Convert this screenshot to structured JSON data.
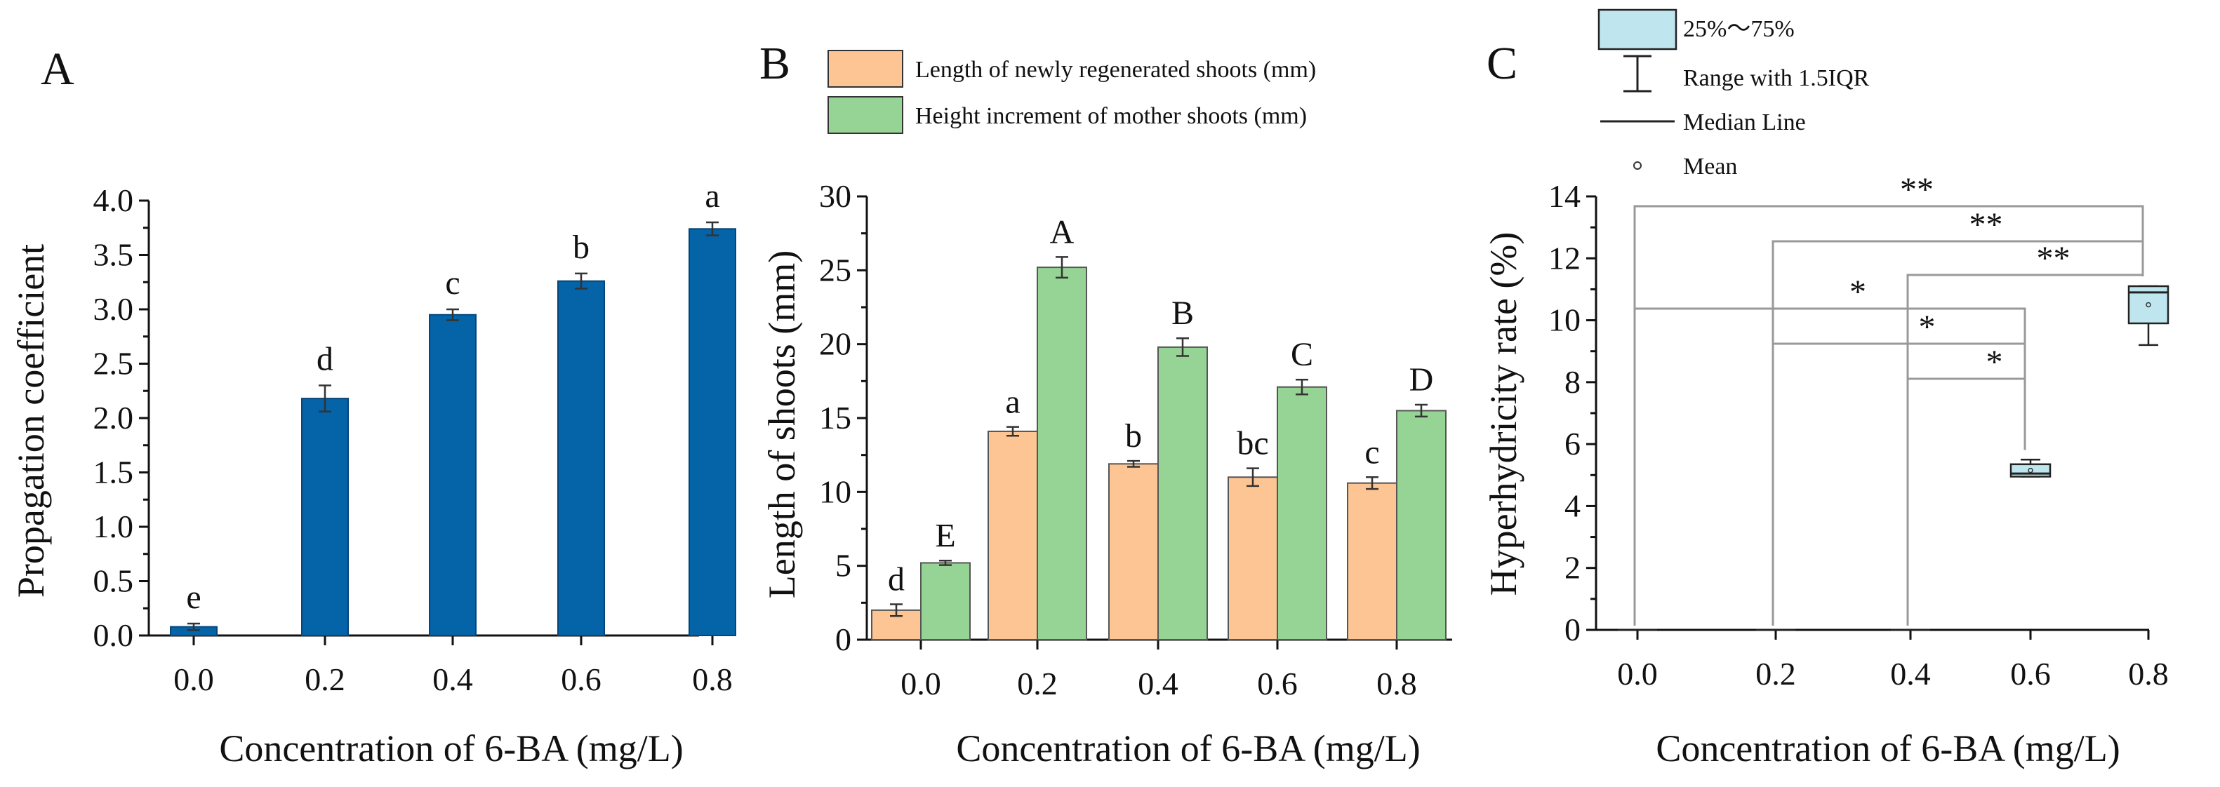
{
  "chart_data": [
    {
      "panel": "A",
      "type": "bar",
      "xlabel": "Concentration of 6-BA (mg/L)",
      "ylabel": "Propagation coefficient",
      "ylim": [
        0,
        4.0
      ],
      "yticks": [
        "0.0",
        "0.5",
        "1.0",
        "1.5",
        "2.0",
        "2.5",
        "3.0",
        "3.5",
        "4.0"
      ],
      "categories": [
        "0.0",
        "0.2",
        "0.4",
        "0.6",
        "0.8"
      ],
      "series": [
        {
          "name": "Propagation coefficient",
          "color": "#0563a8",
          "values": [
            0.08,
            2.18,
            2.95,
            3.26,
            3.74
          ],
          "errors": [
            0.03,
            0.12,
            0.05,
            0.07,
            0.06
          ],
          "letters": [
            "e",
            "d",
            "c",
            "b",
            "a"
          ]
        }
      ]
    },
    {
      "panel": "B",
      "type": "bar",
      "xlabel": "Concentration of 6-BA (mg/L)",
      "ylabel": "Length of shoots (mm)",
      "ylim": [
        0,
        30
      ],
      "yticks": [
        "0",
        "5",
        "10",
        "15",
        "20",
        "25",
        "30"
      ],
      "categories": [
        "0.0",
        "0.2",
        "0.4",
        "0.6",
        "0.8"
      ],
      "series": [
        {
          "name": "Length of newly regenerated shoots (mm)",
          "color": "#fcc593",
          "values": [
            2.0,
            14.1,
            11.9,
            11.0,
            10.6
          ],
          "errors": [
            0.4,
            0.3,
            0.2,
            0.6,
            0.4
          ],
          "letters": [
            "d",
            "a",
            "b",
            "bc",
            "c"
          ]
        },
        {
          "name": "Height increment of mother shoots (mm)",
          "color": "#95d495",
          "values": [
            5.2,
            25.2,
            19.8,
            17.1,
            15.5
          ],
          "errors": [
            0.15,
            0.7,
            0.6,
            0.5,
            0.4
          ],
          "letters": [
            "E",
            "A",
            "B",
            "C",
            "D"
          ]
        }
      ]
    },
    {
      "panel": "C",
      "type": "box",
      "xlabel": "Concentration of 6-BA (mg/L)",
      "ylabel": "Hyperhydricity rate (%)",
      "ylim": [
        0,
        14
      ],
      "yticks": [
        "0",
        "2",
        "4",
        "6",
        "8",
        "10",
        "12",
        "14"
      ],
      "categories": [
        "0.0",
        "0.2",
        "0.4",
        "0.6",
        "0.8"
      ],
      "box_color": "#bfe6ee",
      "boxes": [
        {
          "q1": 0,
          "q3": 0,
          "median": 0,
          "mean": 0,
          "whisker_low": 0,
          "whisker_high": 0
        },
        {
          "q1": 0,
          "q3": 0,
          "median": 0,
          "mean": 0,
          "whisker_low": 0,
          "whisker_high": 0
        },
        {
          "q1": 0,
          "q3": 0,
          "median": 0,
          "mean": 0,
          "whisker_low": 0,
          "whisker_high": 0
        },
        {
          "q1": 4.95,
          "q3": 5.35,
          "median": 5.05,
          "mean": 5.15,
          "whisker_low": 4.95,
          "whisker_high": 5.5
        },
        {
          "q1": 9.9,
          "q3": 11.1,
          "median": 10.9,
          "mean": 10.5,
          "whisker_low": 9.2,
          "whisker_high": 11.1
        }
      ],
      "comparisons": [
        {
          "from": 0,
          "to": 4,
          "label": "**"
        },
        {
          "from": 1,
          "to": 4,
          "label": "**"
        },
        {
          "from": 2,
          "to": 4,
          "label": "**"
        },
        {
          "from": 0,
          "to": 3,
          "label": "*"
        },
        {
          "from": 1,
          "to": 3,
          "label": "*"
        },
        {
          "from": 2,
          "to": 3,
          "label": "*"
        }
      ],
      "legend": [
        "25%～75%",
        "Range with 1.5IQR",
        "Median Line",
        "Mean"
      ]
    }
  ]
}
